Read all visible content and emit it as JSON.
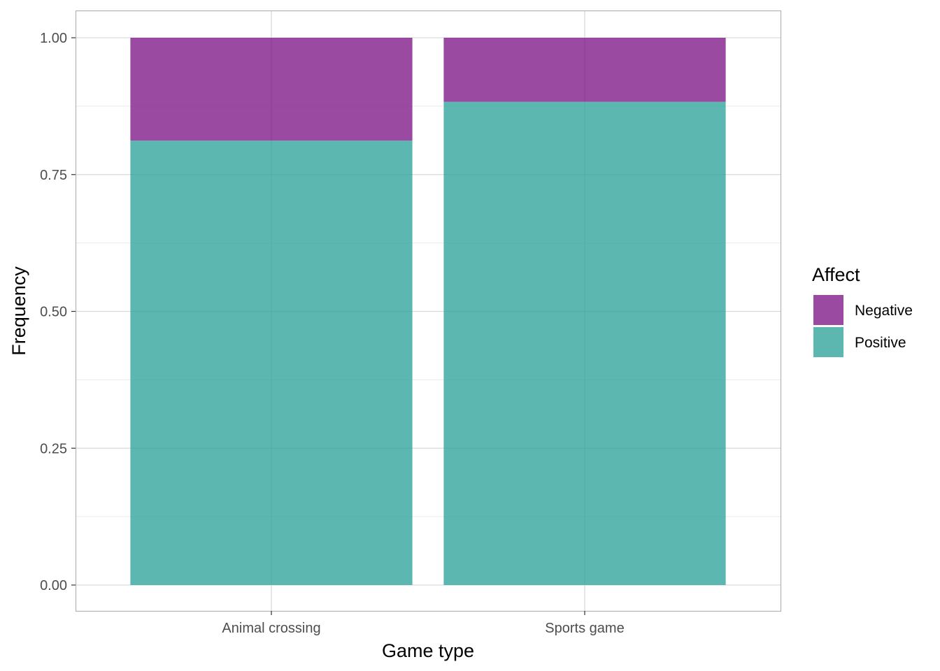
{
  "chart_data": {
    "type": "bar",
    "stacked": true,
    "categories": [
      "Animal crossing",
      "Sports game"
    ],
    "series": [
      {
        "name": "Positive",
        "values": [
          0.812,
          0.883
        ],
        "color": "#2aa198"
      },
      {
        "name": "Negative",
        "values": [
          0.188,
          0.117
        ],
        "color": "#7b1385"
      }
    ],
    "title": "",
    "xlabel": "Game type",
    "ylabel": "Frequency",
    "ylim": [
      0,
      1
    ],
    "yticks": [
      "0.00",
      "0.25",
      "0.50",
      "0.75",
      "1.00"
    ],
    "grid": true,
    "legend": {
      "title": "Affect",
      "position": "right",
      "items": [
        {
          "label": "Negative",
          "color": "#7b1385"
        },
        {
          "label": "Positive",
          "color": "#2aa198"
        }
      ]
    }
  }
}
